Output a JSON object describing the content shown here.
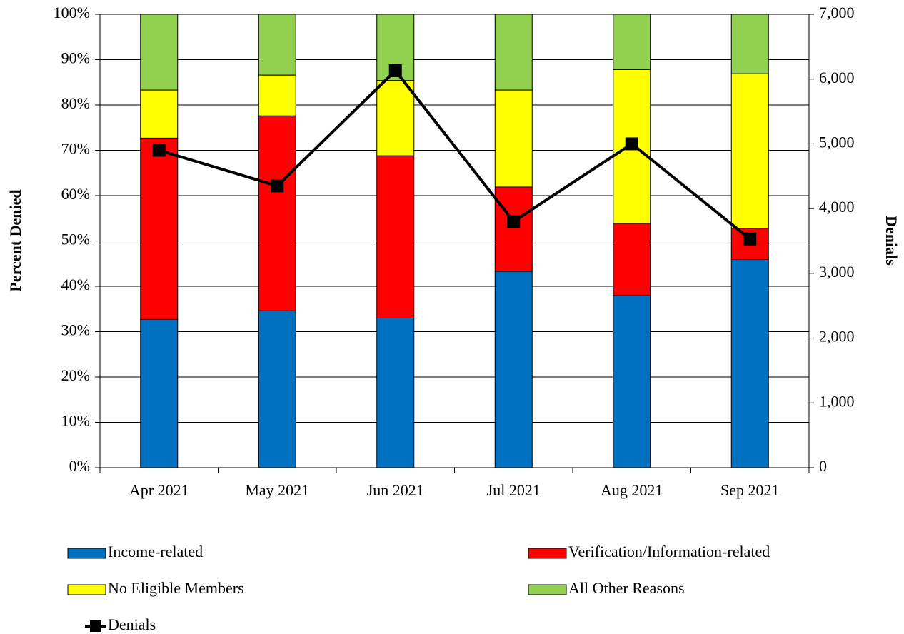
{
  "chart_data": {
    "type": "bar",
    "stacked": true,
    "ylabel": "Percent Denied",
    "y2label": "Denials",
    "categories": [
      "Apr 2021",
      "May 2021",
      "Jun 2021",
      "Jul 2021",
      "Aug 2021",
      "Sep 2021"
    ],
    "series": [
      {
        "name": "Income-related",
        "color": "#0070c0",
        "type": "bar",
        "values": [
          32.7,
          34.6,
          33.0,
          43.3,
          38.0,
          45.9
        ]
      },
      {
        "name": "Verification/Information-related",
        "color": "#ff0000",
        "type": "bar",
        "values": [
          40.0,
          43.0,
          35.8,
          18.6,
          15.9,
          6.9
        ]
      },
      {
        "name": "No Eligible Members",
        "color": "#ffff00",
        "type": "bar",
        "values": [
          10.6,
          9.0,
          16.6,
          21.4,
          33.9,
          34.1
        ]
      },
      {
        "name": "All Other Reasons",
        "color": "#92d050",
        "type": "bar",
        "values": [
          16.7,
          13.4,
          14.6,
          16.7,
          12.2,
          13.1
        ]
      },
      {
        "name": "Denials",
        "color": "#000000",
        "type": "line",
        "axis": "y2",
        "values": [
          4900,
          4350,
          6130,
          3800,
          5000,
          3530
        ]
      }
    ],
    "ylim": [
      0,
      100
    ],
    "yticks": [
      {
        "value": 0,
        "label": "0%"
      },
      {
        "value": 10,
        "label": "10%"
      },
      {
        "value": 20,
        "label": "20%"
      },
      {
        "value": 30,
        "label": "30%"
      },
      {
        "value": 40,
        "label": "40%"
      },
      {
        "value": 50,
        "label": "50%"
      },
      {
        "value": 60,
        "label": "60%"
      },
      {
        "value": 70,
        "label": "70%"
      },
      {
        "value": 80,
        "label": "80%"
      },
      {
        "value": 90,
        "label": "90%"
      },
      {
        "value": 100,
        "label": "100%"
      }
    ],
    "y2lim": [
      0,
      7000
    ],
    "y2ticks": [
      0,
      {
        "value": 1000,
        "label": "1,000"
      },
      {
        "value": 2000,
        "label": "2,000"
      },
      {
        "value": 3000,
        "label": "3,000"
      },
      {
        "value": 4000,
        "label": "4,000"
      },
      {
        "value": 5000,
        "label": "5,000"
      },
      {
        "value": 6000,
        "label": "6,000"
      },
      {
        "value": 7000,
        "label": "7,000"
      }
    ],
    "grid": true,
    "legend": "bottom"
  }
}
